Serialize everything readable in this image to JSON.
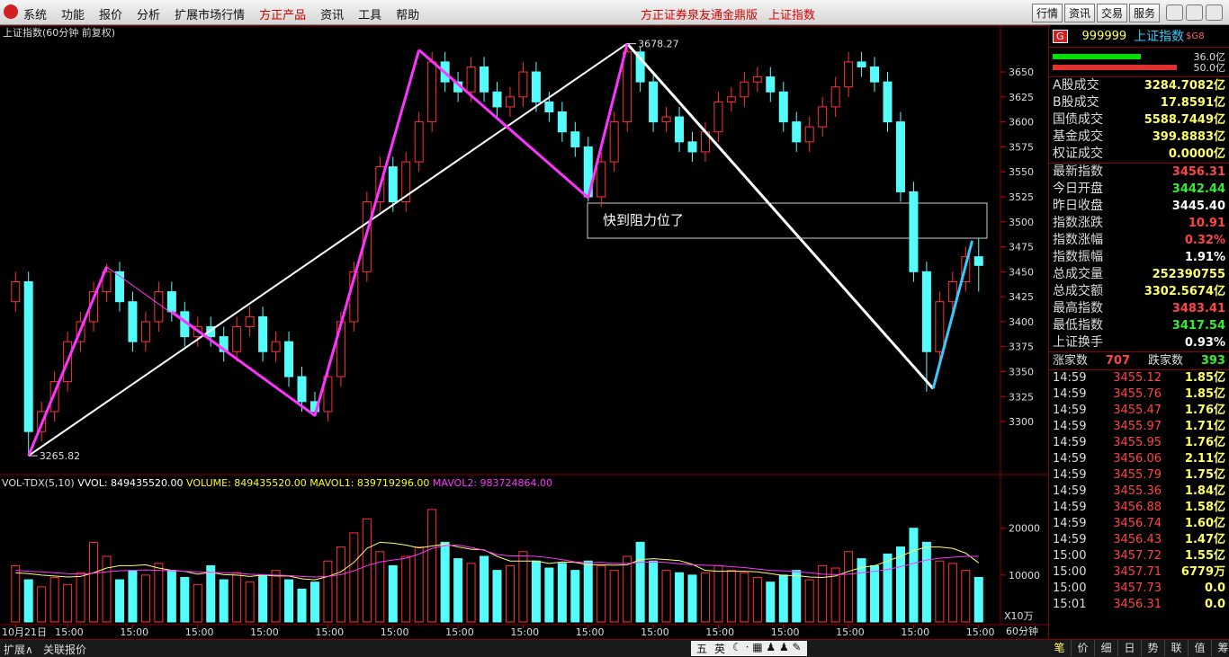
{
  "menu": [
    {
      "label": "系统",
      "color": "#111"
    },
    {
      "label": "功能",
      "color": "#111"
    },
    {
      "label": "报价",
      "color": "#111"
    },
    {
      "label": "分析",
      "color": "#111"
    },
    {
      "label": "扩展市场行情",
      "color": "#111"
    },
    {
      "label": "方正产品",
      "color": "#d00000"
    },
    {
      "label": "资讯",
      "color": "#111"
    },
    {
      "label": "工具",
      "color": "#111"
    },
    {
      "label": "帮助",
      "color": "#111"
    }
  ],
  "center_title": [
    "方正证券泉友通金鼎版",
    "上证指数"
  ],
  "top_buttons": [
    "行情",
    "资讯",
    "交易",
    "服务"
  ],
  "chart_data": [
    {
      "type": "candlestick",
      "title": "上证指数(60分钟 前复权)",
      "categories": [
        "10月21日",
        null,
        null,
        null,
        "15:00",
        null,
        null,
        null,
        null,
        "15:00",
        null,
        null,
        null,
        null,
        "15:00",
        null,
        null,
        null,
        null,
        "15:00",
        null,
        null,
        null,
        null,
        "15:00",
        null,
        null,
        null,
        null,
        "15:00",
        null,
        null,
        null,
        null,
        "15:00",
        null,
        null,
        null,
        null,
        "15:00",
        null,
        null,
        null,
        null,
        "15:00",
        null,
        null,
        null,
        null,
        "15:00",
        null,
        null,
        null,
        null,
        "15:00",
        null,
        null,
        null,
        null,
        "15:00",
        null,
        null,
        null,
        null,
        "15:00",
        null,
        null,
        null,
        null,
        "15:00",
        null,
        null,
        null,
        null,
        "15:00"
      ],
      "open": [
        3420,
        3440,
        3290,
        3310,
        3340,
        3380,
        3400,
        3430,
        3450,
        3420,
        3380,
        3400,
        3430,
        3410,
        3385,
        3395,
        3385,
        3370,
        3395,
        3405,
        3370,
        3380,
        3345,
        3320,
        3310,
        3345,
        3400,
        3450,
        3520,
        3555,
        3520,
        3560,
        3600,
        3660,
        3640,
        3630,
        3655,
        3630,
        3615,
        3625,
        3650,
        3620,
        3610,
        3590,
        3575,
        3525,
        3560,
        3600,
        3670,
        3640,
        3600,
        3605,
        3580,
        3570,
        3590,
        3620,
        3625,
        3640,
        3645,
        3630,
        3600,
        3580,
        3595,
        3615,
        3635,
        3660,
        3655,
        3640,
        3600,
        3530,
        3450,
        3370,
        3420,
        3440,
        3465
      ],
      "high": [
        3450,
        3450,
        3320,
        3350,
        3390,
        3410,
        3440,
        3458,
        3460,
        3430,
        3410,
        3440,
        3440,
        3420,
        3405,
        3405,
        3395,
        3405,
        3415,
        3415,
        3390,
        3390,
        3355,
        3330,
        3355,
        3410,
        3460,
        3530,
        3565,
        3565,
        3570,
        3610,
        3670,
        3670,
        3650,
        3665,
        3665,
        3640,
        3635,
        3660,
        3660,
        3630,
        3620,
        3600,
        3585,
        3570,
        3610,
        3678.27,
        3675,
        3650,
        3615,
        3615,
        3590,
        3600,
        3630,
        3635,
        3650,
        3655,
        3655,
        3640,
        3610,
        3605,
        3625,
        3645,
        3670,
        3670,
        3665,
        3650,
        3610,
        3540,
        3460,
        3430,
        3450,
        3475,
        3483.41
      ],
      "low": [
        3410,
        3265.82,
        3280,
        3300,
        3330,
        3370,
        3390,
        3420,
        3410,
        3370,
        3370,
        3390,
        3400,
        3375,
        3375,
        3375,
        3360,
        3360,
        3385,
        3360,
        3360,
        3335,
        3310,
        3305,
        3300,
        3335,
        3390,
        3440,
        3510,
        3510,
        3510,
        3550,
        3590,
        3630,
        3620,
        3620,
        3620,
        3605,
        3605,
        3615,
        3610,
        3600,
        3580,
        3565,
        3520,
        3515,
        3550,
        3590,
        3630,
        3590,
        3590,
        3570,
        3560,
        3560,
        3580,
        3610,
        3615,
        3630,
        3620,
        3590,
        3570,
        3570,
        3585,
        3605,
        3625,
        3645,
        3630,
        3590,
        3520,
        3440,
        3330,
        3360,
        3410,
        3430,
        3430
      ],
      "close": [
        3440,
        3290,
        3310,
        3340,
        3380,
        3400,
        3430,
        3450,
        3420,
        3380,
        3400,
        3430,
        3410,
        3385,
        3395,
        3385,
        3370,
        3395,
        3405,
        3370,
        3380,
        3345,
        3320,
        3310,
        3345,
        3400,
        3450,
        3520,
        3555,
        3520,
        3560,
        3600,
        3660,
        3640,
        3630,
        3655,
        3630,
        3615,
        3625,
        3650,
        3620,
        3610,
        3590,
        3575,
        3525,
        3560,
        3600,
        3670,
        3640,
        3600,
        3605,
        3580,
        3570,
        3590,
        3620,
        3625,
        3640,
        3645,
        3630,
        3600,
        3580,
        3595,
        3615,
        3635,
        3660,
        3655,
        3640,
        3600,
        3530,
        3450,
        3370,
        3420,
        3440,
        3465,
        3456.31
      ],
      "up_color": "#ff3232",
      "down_color": "#54fcfc",
      "ylim": [
        3247,
        3695
      ],
      "yticks": [
        3300,
        3325,
        3350,
        3375,
        3400,
        3425,
        3450,
        3475,
        3500,
        3525,
        3550,
        3575,
        3600,
        3625,
        3650
      ],
      "extreme_labels": [
        {
          "index": 1,
          "field": "low"
        },
        {
          "index": 47,
          "field": "high"
        }
      ],
      "trend_lines": [
        {
          "from": [
            1,
            3265.82
          ],
          "to": [
            47,
            3678.27
          ],
          "color": "#ffffff",
          "width": 2
        },
        {
          "from": [
            47,
            3678.27
          ],
          "to": [
            70.5,
            3333
          ],
          "color": "#ffffff",
          "width": 3
        },
        {
          "from": [
            1,
            3265.82
          ],
          "to": [
            7,
            3455
          ],
          "color": "#ff33ff",
          "width": 3
        },
        {
          "from": [
            7,
            3455
          ],
          "to": [
            23,
            3306
          ],
          "color": "#ff33ff",
          "width": 1
        },
        {
          "from": [
            12,
            3410
          ],
          "to": [
            23,
            3306
          ],
          "color": "#ff33ff",
          "width": 3
        },
        {
          "from": [
            23,
            3306
          ],
          "to": [
            31,
            3672
          ],
          "color": "#ff33ff",
          "width": 3
        },
        {
          "from": [
            31,
            3672
          ],
          "to": [
            44,
            3524
          ],
          "color": "#ff33ff",
          "width": 3
        },
        {
          "from": [
            44,
            3524
          ],
          "to": [
            47,
            3678.27
          ],
          "color": "#ff33ff",
          "width": 3
        },
        {
          "from": [
            70.5,
            3333
          ],
          "to": [
            73.5,
            3481
          ],
          "color": "#33ccff",
          "width": 3
        }
      ],
      "note": "快到阻力位了",
      "period": "60分钟"
    },
    {
      "type": "bar",
      "indicator": "VOL-TDX(5,10)",
      "stats": [
        {
          "label": "VVOL: 849435520.00",
          "color": "#ffffff"
        },
        {
          "label": "VOLUME: 849435520.00",
          "color": "#ffff00"
        },
        {
          "label": "MAVOL1: 839719296.00",
          "color": "#ffff00"
        },
        {
          "label": "MAVOL2: 983724864.00",
          "color": "#ff33ff"
        }
      ],
      "values": [
        12000,
        9000,
        7500,
        9500,
        8000,
        10500,
        17000,
        14000,
        9000,
        11000,
        10000,
        12500,
        11000,
        9500,
        8000,
        12000,
        9000,
        10500,
        8500,
        10000,
        11000,
        9000,
        7000,
        8500,
        13000,
        16000,
        19000,
        22000,
        15000,
        12000,
        14000,
        16000,
        24000,
        17000,
        13500,
        12500,
        14000,
        11000,
        12000,
        15000,
        13000,
        11500,
        12500,
        11000,
        13000,
        12000,
        11000,
        14000,
        17000,
        13000,
        11000,
        10500,
        10000,
        10500,
        12000,
        11000,
        10500,
        9500,
        8500,
        10000,
        11000,
        9000,
        12000,
        11500,
        15000,
        13500,
        12000,
        14500,
        16000,
        20000,
        17000,
        13000,
        12500,
        11000,
        9500
      ],
      "series": [
        {
          "name": "MAVOL1",
          "color": "#ffff66",
          "values": [
            10500,
            10300,
            10000,
            9800,
            9600,
            9700,
            10500,
            11500,
            12000,
            12000,
            12200,
            11500,
            11000,
            10800,
            10200,
            10600,
            10100,
            10000,
            9700,
            10000,
            9800,
            9800,
            9200,
            9000,
            9700,
            10700,
            12700,
            15700,
            17000,
            16800,
            16400,
            15800,
            16200,
            16600,
            16000,
            15500,
            15400,
            14000,
            13000,
            13000,
            13000,
            12500,
            12800,
            12700,
            12200,
            12200,
            12100,
            12200,
            13300,
            13500,
            13300,
            13100,
            12300,
            11000,
            10800,
            10800,
            10800,
            10700,
            10300,
            9900,
            9900,
            9600,
            9500,
            9800,
            10800,
            11600,
            12000,
            13000,
            14000,
            15200,
            16000,
            16000,
            15700,
            14700,
            12600
          ]
        },
        {
          "name": "MAVOL2",
          "color": "#ff33ff",
          "values": [
            11000,
            10800,
            10700,
            10500,
            10300,
            10200,
            10400,
            10700,
            10900,
            11000,
            11100,
            11000,
            10900,
            10800,
            10700,
            10600,
            10500,
            10400,
            10200,
            10100,
            10000,
            9900,
            9700,
            9600,
            9700,
            10100,
            10900,
            12000,
            12800,
            13200,
            13600,
            14500,
            15700,
            16300,
            16400,
            15900,
            15300,
            14400,
            14100,
            14100,
            14000,
            13700,
            13300,
            12800,
            12600,
            12700,
            12500,
            12500,
            12700,
            12800,
            12700,
            12400,
            12200,
            12100,
            12000,
            11800,
            11600,
            11300,
            11000,
            10900,
            10700,
            10500,
            10200,
            10100,
            10200,
            10500,
            10800,
            11200,
            11800,
            12500,
            13200,
            13600,
            13800,
            14000,
            14000
          ]
        }
      ],
      "ylim": [
        0,
        28000
      ],
      "yticks": [
        10000,
        20000
      ],
      "unit": "X10万"
    }
  ],
  "quote": {
    "badge": "G",
    "code": "999999",
    "name": "上证指数",
    "tag": "$G8",
    "bars": [
      {
        "label": "36.0亿",
        "color": "#00e000"
      },
      {
        "label": "50.0亿",
        "color": "#e03030"
      }
    ],
    "rows": [
      {
        "label": "A股成交",
        "value": "3284.7082亿",
        "color": "#ffff66"
      },
      {
        "label": "B股成交",
        "value": "17.8591亿",
        "color": "#ffff66"
      },
      {
        "label": "国债成交",
        "value": "5588.7449亿",
        "color": "#ffff66"
      },
      {
        "label": "基金成交",
        "value": "399.8883亿",
        "color": "#ffff66"
      },
      {
        "label": "权证成交",
        "value": "0.0000亿",
        "color": "#ffff66"
      },
      {
        "label": "最新指数",
        "value": "3456.31",
        "color": "#ff4444"
      },
      {
        "label": "今日开盘",
        "value": "3442.44",
        "color": "#33ee33"
      },
      {
        "label": "昨日收盘",
        "value": "3445.40",
        "color": "#ffffff"
      },
      {
        "label": "指数涨跌",
        "value": "10.91",
        "color": "#ff4444"
      },
      {
        "label": "指数涨幅",
        "value": "0.32%",
        "color": "#ff4444"
      },
      {
        "label": "指数振幅",
        "value": "1.91%",
        "color": "#ffffff"
      },
      {
        "label": "总成交量",
        "value": "252390755",
        "color": "#ffff66"
      },
      {
        "label": "总成交额",
        "value": "3302.5674亿",
        "color": "#ffff66"
      },
      {
        "label": "最高指数",
        "value": "3483.41",
        "color": "#ff4444"
      },
      {
        "label": "最低指数",
        "value": "3417.54",
        "color": "#33ee33"
      },
      {
        "label": "上证换手",
        "value": "0.93%",
        "color": "#ffffff"
      }
    ],
    "breadth": {
      "up_label": "涨家数",
      "up": "707",
      "down_label": "跌家数",
      "down": "393"
    },
    "ticks": [
      [
        "14:59",
        "3455.12",
        "1.85亿"
      ],
      [
        "14:59",
        "3455.76",
        "1.85亿"
      ],
      [
        "14:59",
        "3455.47",
        "1.76亿"
      ],
      [
        "14:59",
        "3455.97",
        "1.71亿"
      ],
      [
        "14:59",
        "3455.95",
        "1.76亿"
      ],
      [
        "14:59",
        "3456.06",
        "2.11亿"
      ],
      [
        "14:59",
        "3455.79",
        "1.75亿"
      ],
      [
        "14:59",
        "3455.36",
        "1.84亿"
      ],
      [
        "14:59",
        "3456.88",
        "1.58亿"
      ],
      [
        "14:59",
        "3456.74",
        "1.60亿"
      ],
      [
        "14:59",
        "3456.43",
        "1.47亿"
      ],
      [
        "15:00",
        "3457.72",
        "1.55亿"
      ],
      [
        "15:00",
        "3457.71",
        "6779万"
      ],
      [
        "15:00",
        "3457.73",
        "0.0"
      ],
      [
        "15:01",
        "3456.31",
        "0.0"
      ]
    ]
  },
  "bottom": {
    "left_tabs": [
      "扩展∧",
      "关联报价"
    ],
    "tools": [
      "五",
      "英"
    ],
    "right_tabs": [
      "笔",
      "价",
      "细",
      "日",
      "势",
      "联",
      "值",
      "筹"
    ]
  }
}
